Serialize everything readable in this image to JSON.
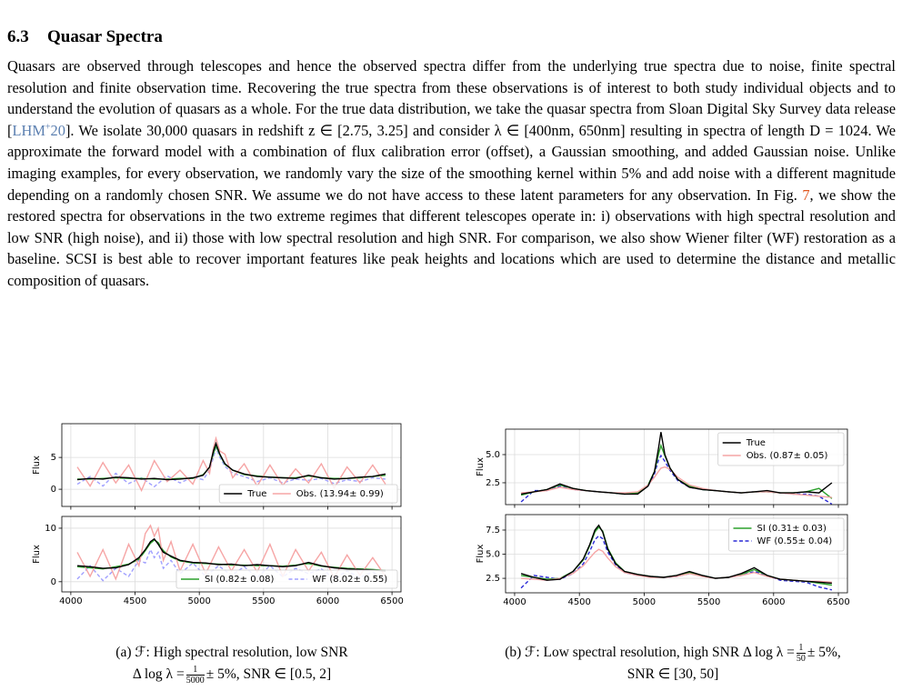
{
  "section": {
    "number": "6.3",
    "title": "Quasar Spectra"
  },
  "paragraph": {
    "p0": "Quasars are observed through telescopes and hence the observed spectra differ from the underlying true spectra due to noise, finite spectral resolution and finite observation time. Recovering the true spectra from these observations is of interest to both study individual objects and to understand the evolution of quasars as a whole. For the true data distribution, we take the quasar spectra from Sloan Digital Sky Survey data release [",
    "cite_author": "LHM",
    "cite_sup": "+",
    "cite_year": "20",
    "p1": "]. We isolate 30,000 quasars in redshift z ∈ [2.75, 3.25] and consider λ ∈ [400nm, 650nm] resulting in spectra of length D = 1024. We approximate the forward model with a combination of flux calibration error (offset), a Gaussian smoothing, and added Gaussian noise. Unlike imaging examples, for every observation, we randomly vary the size of the smoothing kernel within 5% and add noise with a different magnitude depending on a randomly chosen SNR. We assume we do not have access to these latent parameters for any observation. In Fig. ",
    "fig_ref": "7",
    "p2": ", we show the restored spectra for observations in the two extreme regimes that different telescopes operate in: i) observations with high spectral resolution and low SNR (high noise), and ii) those with low spectral resolution and high SNR. For comparison, we also show Wiener filter (WF) restoration as a baseline. SCSI is best able to recover important features like peak heights and locations which are used to determine the distance and metallic composition of quasars."
  },
  "figure": {
    "panels": [
      {
        "type": "line",
        "ylabel": "Flux",
        "xlim": [
          3930,
          6570
        ],
        "xticks": [
          4000,
          4500,
          5000,
          5500,
          6000,
          6500
        ],
        "xtick_labels": false,
        "ylim": [
          -2.7,
          10.3
        ],
        "yticks": [
          0,
          5
        ],
        "grid": true,
        "legend": "lower right",
        "legend_columns": 2,
        "x": [
          4050,
          4150,
          4250,
          4350,
          4450,
          4550,
          4650,
          4750,
          4850,
          4950,
          5030,
          5080,
          5110,
          5130,
          5160,
          5200,
          5260,
          5350,
          5450,
          5550,
          5650,
          5750,
          5850,
          5950,
          6050,
          6150,
          6250,
          6350,
          6450
        ],
        "series": [
          {
            "name": "True",
            "color": "#000000",
            "dash": false,
            "values": [
              1.5,
              1.7,
              1.6,
              1.9,
              1.8,
              1.6,
              1.7,
              1.5,
              1.6,
              1.8,
              2.2,
              3.5,
              6.0,
              7.2,
              5.5,
              4.0,
              3.0,
              2.4,
              2.0,
              1.9,
              1.8,
              1.7,
              2.2,
              1.8,
              1.6,
              1.7,
              1.9,
              2.0,
              2.4
            ]
          },
          {
            "name": "Obs. (13.94± 0.99)",
            "color": "#f6a5a5",
            "dash": false,
            "values": [
              3.5,
              0.5,
              4.2,
              1.0,
              3.8,
              -0.2,
              4.5,
              1.2,
              3.0,
              0.8,
              4.5,
              2.5,
              6.5,
              8.0,
              6.0,
              5.5,
              1.8,
              4.0,
              0.5,
              3.8,
              0.6,
              3.2,
              1.0,
              4.0,
              0.2,
              3.5,
              1.0,
              3.8,
              0.8
            ]
          },
          {
            "color": "#2ca02c",
            "dash": false,
            "values": [
              1.6,
              1.6,
              1.7,
              1.8,
              1.7,
              1.7,
              1.6,
              1.6,
              1.7,
              1.7,
              2.3,
              3.4,
              5.6,
              6.8,
              5.4,
              3.9,
              3.0,
              2.3,
              2.1,
              1.9,
              1.8,
              1.8,
              2.1,
              1.8,
              1.7,
              1.7,
              1.8,
              2.0,
              2.2
            ]
          },
          {
            "color": "#a0a0ff",
            "dash": true,
            "values": [
              0.8,
              2.0,
              0.5,
              2.5,
              0.9,
              1.8,
              0.4,
              2.1,
              1.0,
              1.9,
              1.5,
              3.0,
              5.0,
              6.5,
              5.0,
              3.6,
              2.5,
              2.0,
              1.2,
              1.8,
              1.0,
              1.6,
              1.4,
              1.7,
              0.9,
              1.5,
              1.2,
              1.8,
              1.6
            ]
          }
        ]
      },
      {
        "type": "line",
        "ylabel": "Flux",
        "xlim": [
          3930,
          6570
        ],
        "xticks": [
          4000,
          4500,
          5000,
          5500,
          6000,
          6500
        ],
        "xtick_labels": true,
        "ylim": [
          -1.9,
          12.2
        ],
        "yticks": [
          0,
          10
        ],
        "grid": true,
        "legend": "lower right",
        "legend_columns": 2,
        "x": [
          4050,
          4150,
          4250,
          4350,
          4450,
          4530,
          4580,
          4620,
          4650,
          4680,
          4720,
          4780,
          4850,
          4950,
          5050,
          5150,
          5250,
          5350,
          5450,
          5550,
          5650,
          5750,
          5850,
          5950,
          6050,
          6150,
          6250,
          6350,
          6450
        ],
        "series": [
          {
            "color": "#000000",
            "dash": false,
            "values": [
              3.0,
              2.8,
              2.5,
              2.6,
              3.2,
              4.5,
              6.0,
              7.5,
              8.0,
              7.0,
              5.5,
              4.8,
              4.0,
              3.6,
              3.5,
              3.2,
              3.3,
              3.0,
              3.2,
              3.0,
              2.8,
              3.0,
              3.6,
              3.0,
              2.6,
              2.4,
              2.3,
              2.2,
              2.0
            ]
          },
          {
            "color": "#f6a5a5",
            "dash": false,
            "values": [
              5.5,
              1.0,
              6.0,
              0.5,
              7.0,
              3.0,
              9.0,
              10.5,
              8.5,
              10.0,
              4.0,
              7.5,
              2.0,
              7.0,
              1.5,
              6.5,
              2.0,
              6.0,
              1.8,
              7.0,
              1.0,
              6.0,
              2.0,
              5.5,
              0.8,
              5.0,
              1.2,
              4.5,
              1.0
            ]
          },
          {
            "name": "SI (0.82± 0.08)",
            "color": "#2ca02c",
            "dash": false,
            "values": [
              2.8,
              2.6,
              2.4,
              2.8,
              3.3,
              4.2,
              5.8,
              7.2,
              7.8,
              7.3,
              5.8,
              4.6,
              3.9,
              3.5,
              3.4,
              3.3,
              3.1,
              3.1,
              3.0,
              3.0,
              2.9,
              3.1,
              3.4,
              2.9,
              2.7,
              2.5,
              2.4,
              2.3,
              2.1
            ]
          },
          {
            "name": "WF (8.02± 0.55)",
            "color": "#a0a0ff",
            "dash": true,
            "values": [
              0.5,
              3.0,
              0.2,
              2.5,
              1.0,
              4.0,
              3.5,
              6.0,
              4.5,
              5.5,
              2.5,
              4.0,
              1.5,
              3.5,
              1.0,
              3.0,
              1.2,
              2.8,
              0.8,
              3.0,
              0.9,
              2.5,
              1.5,
              2.4,
              0.6,
              2.0,
              0.8,
              1.8,
              0.5
            ]
          }
        ]
      },
      {
        "type": "line",
        "ylabel": "Flux",
        "xlim": [
          3930,
          6570
        ],
        "xticks": [
          4000,
          4500,
          5000,
          5500,
          6000,
          6500
        ],
        "xtick_labels": false,
        "ylim": [
          0.56,
          7.26
        ],
        "yticks": [
          2.5,
          {
            "value": 5,
            "label": "5.0"
          }
        ],
        "grid": true,
        "legend": "upper right",
        "legend_columns": 1,
        "x": [
          4050,
          4150,
          4250,
          4350,
          4450,
          4550,
          4650,
          4750,
          4850,
          4950,
          5030,
          5080,
          5110,
          5130,
          5160,
          5200,
          5260,
          5350,
          5450,
          5550,
          5650,
          5750,
          5850,
          5950,
          6050,
          6150,
          6250,
          6350,
          6450
        ],
        "series": [
          {
            "name": "True",
            "color": "#000000",
            "dash": false,
            "values": [
              1.5,
              1.7,
              1.9,
              2.4,
              2.0,
              1.8,
              1.7,
              1.6,
              1.5,
              1.5,
              2.2,
              3.5,
              5.5,
              7.0,
              5.0,
              3.8,
              2.8,
              2.1,
              1.9,
              1.8,
              1.7,
              1.6,
              1.7,
              1.8,
              1.6,
              1.6,
              1.7,
              1.6,
              2.5
            ]
          },
          {
            "name": "Obs. (0.87± 0.05)",
            "color": "#f6a5a5",
            "dash": false,
            "values": [
              1.6,
              1.7,
              1.8,
              2.1,
              1.9,
              1.8,
              1.7,
              1.6,
              1.6,
              1.7,
              2.3,
              3.0,
              3.5,
              3.8,
              3.9,
              3.7,
              3.0,
              2.3,
              2.0,
              1.8,
              1.7,
              1.6,
              1.7,
              1.7,
              1.6,
              1.5,
              1.4,
              1.3,
              1.2
            ]
          },
          {
            "color": "#2ca02c",
            "dash": false,
            "values": [
              1.4,
              1.7,
              1.9,
              2.3,
              2.0,
              1.8,
              1.7,
              1.6,
              1.5,
              1.6,
              2.3,
              3.5,
              5.0,
              5.8,
              4.9,
              3.8,
              2.8,
              2.2,
              1.9,
              1.8,
              1.7,
              1.6,
              1.7,
              1.7,
              1.6,
              1.6,
              1.7,
              2.0,
              1.1
            ]
          },
          {
            "color": "#2b2bd6",
            "dash": true,
            "values": [
              0.8,
              1.8,
              1.8,
              2.2,
              1.9,
              1.8,
              1.7,
              1.6,
              1.5,
              1.6,
              2.2,
              3.3,
              4.5,
              4.9,
              4.4,
              3.6,
              2.7,
              2.1,
              1.9,
              1.8,
              1.7,
              1.6,
              1.7,
              1.7,
              1.6,
              1.5,
              1.5,
              1.3,
              0.6
            ]
          }
        ]
      },
      {
        "type": "line",
        "ylabel": "Flux",
        "xlim": [
          3930,
          6570
        ],
        "xticks": [
          4000,
          4500,
          5000,
          5500,
          6000,
          6500
        ],
        "xtick_labels": true,
        "ylim": [
          1.0,
          9.1
        ],
        "yticks": [
          2.5,
          {
            "value": 5,
            "label": "5.0"
          },
          7.5
        ],
        "grid": true,
        "legend": "upper right",
        "legend_columns": 1,
        "x": [
          4050,
          4150,
          4250,
          4350,
          4450,
          4530,
          4580,
          4620,
          4650,
          4680,
          4720,
          4780,
          4850,
          4950,
          5050,
          5150,
          5250,
          5350,
          5450,
          5550,
          5650,
          5750,
          5850,
          5950,
          6050,
          6150,
          6250,
          6350,
          6450
        ],
        "series": [
          {
            "color": "#000000",
            "dash": false,
            "values": [
              3.0,
              2.6,
              2.3,
              2.4,
              3.2,
              4.5,
              6.0,
              7.5,
              8.0,
              7.3,
              5.5,
              4.0,
              3.2,
              2.9,
              2.7,
              2.6,
              2.8,
              3.2,
              2.8,
              2.5,
              2.6,
              3.0,
              3.6,
              2.8,
              2.4,
              2.3,
              2.2,
              2.1,
              2.0
            ]
          },
          {
            "color": "#f6a5a5",
            "dash": false,
            "values": [
              2.5,
              2.4,
              2.3,
              2.5,
              3.0,
              3.8,
              4.6,
              5.2,
              5.5,
              5.3,
              4.6,
              3.7,
              3.1,
              2.8,
              2.6,
              2.6,
              2.7,
              3.0,
              2.7,
              2.5,
              2.6,
              2.8,
              3.1,
              2.7,
              2.4,
              2.3,
              2.2,
              2.2,
              2.1
            ]
          },
          {
            "name": "SI (0.31± 0.03)",
            "color": "#2ca02c",
            "dash": false,
            "values": [
              2.8,
              2.6,
              2.4,
              2.5,
              3.2,
              4.4,
              5.9,
              7.3,
              7.8,
              7.4,
              5.6,
              4.1,
              3.2,
              2.9,
              2.7,
              2.6,
              2.8,
              3.1,
              2.8,
              2.5,
              2.6,
              2.9,
              3.4,
              2.8,
              2.4,
              2.3,
              2.2,
              2.0,
              1.8
            ]
          },
          {
            "name": "WF (0.55± 0.04)",
            "color": "#2b2bd6",
            "dash": true,
            "values": [
              1.5,
              2.8,
              2.6,
              2.4,
              3.0,
              4.0,
              5.3,
              6.5,
              6.9,
              6.6,
              5.2,
              3.9,
              3.1,
              2.8,
              2.7,
              2.6,
              2.7,
              3.0,
              2.8,
              2.5,
              2.6,
              2.8,
              3.2,
              2.8,
              2.3,
              2.2,
              2.1,
              1.6,
              1.3
            ]
          }
        ]
      }
    ],
    "captions": [
      {
        "line1": "(a) ℱ: High spectral resolution, low SNR",
        "pre": "Δ log λ =",
        "num": "1",
        "den": "5000",
        "post": "± 5%, SNR ∈ [0.5, 2]"
      },
      {
        "line1": "(b) ℱ: Low spectral resolution, high SNR Δ log λ =",
        "num": "1",
        "den": "50",
        "post": "± 5%,",
        "line2": "SNR ∈ [30, 50]"
      }
    ]
  }
}
